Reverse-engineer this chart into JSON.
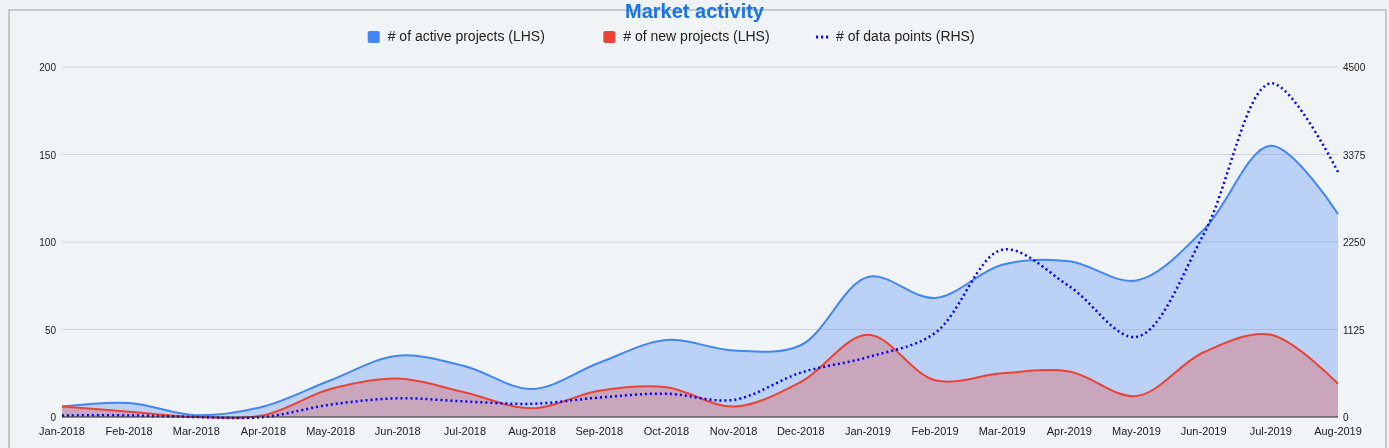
{
  "chart_data": {
    "type": "area",
    "title": "Market activity",
    "categories": [
      "Jan-2018",
      "Feb-2018",
      "Mar-2018",
      "Apr-2018",
      "May-2018",
      "Jun-2018",
      "Jul-2018",
      "Aug-2018",
      "Sep-2018",
      "Oct-2018",
      "Nov-2018",
      "Dec-2018",
      "Jan-2019",
      "Feb-2019",
      "Mar-2019",
      "Apr-2019",
      "May-2019",
      "Jun-2019",
      "Jul-2019",
      "Aug-2019"
    ],
    "series": [
      {
        "name": "# of active projects (LHS)",
        "color": "#4285f4",
        "values": [
          6,
          8,
          1,
          6,
          21,
          35,
          29,
          16,
          31,
          44,
          38,
          41,
          80,
          68,
          87,
          89,
          78,
          107,
          155,
          116
        ]
      },
      {
        "name": "# of new projects (LHS)",
        "color": "#ea4335",
        "values": [
          6,
          3,
          0,
          1,
          16,
          22,
          14,
          5,
          15,
          17,
          6,
          20,
          47,
          21,
          25,
          26,
          12,
          37,
          47,
          19
        ]
      },
      {
        "name": "# of data points (RHS)",
        "type": "line",
        "axis": "y2",
        "line_style": "dotted",
        "color": "#0000ff",
        "values": [
          20,
          20,
          0,
          0,
          160,
          240,
          200,
          170,
          250,
          300,
          220,
          570,
          770,
          1080,
          2150,
          1680,
          1030,
          2350,
          4290,
          3150
        ]
      }
    ],
    "ylim": [
      0,
      200
    ],
    "yticks": [
      0,
      50,
      100,
      150,
      200
    ],
    "y2lim": [
      0,
      4500
    ],
    "y2ticks": [
      0,
      1125,
      2250,
      3375,
      4500
    ],
    "grid": "y",
    "legend": "top"
  }
}
